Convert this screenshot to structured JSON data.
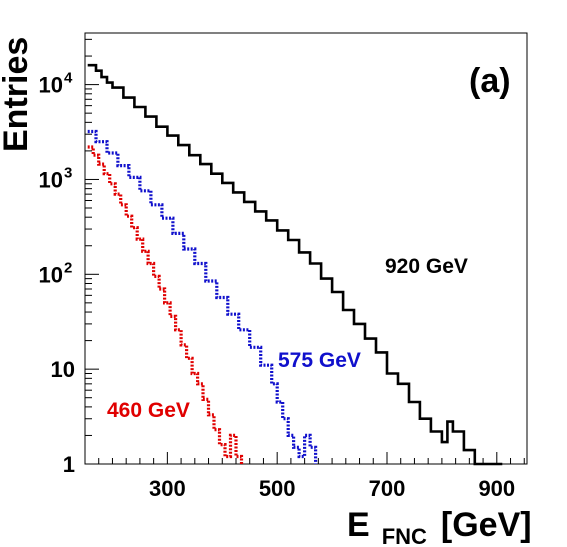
{
  "chart_data": {
    "type": "line",
    "panel_label": "(a)",
    "xlabel": {
      "main": "E",
      "sub": "FNC",
      "unit": "[GeV]"
    },
    "ylabel": "Entries",
    "xlim": [
      150,
      955
    ],
    "ylim": [
      1,
      35000
    ],
    "yscale": "log",
    "x_ticks": [
      300,
      500,
      700,
      900
    ],
    "y_ticks": [
      {
        "value": 1,
        "label": "1"
      },
      {
        "value": 10,
        "label": "10"
      },
      {
        "value": 100,
        "label": "10",
        "exp": "2"
      },
      {
        "value": 1000,
        "label": "10",
        "exp": "3"
      },
      {
        "value": 10000,
        "label": "10",
        "exp": "4"
      }
    ],
    "series": [
      {
        "name": "920 GeV",
        "color": "#000000",
        "style": "solid",
        "x": [
          155,
          170,
          180,
          190,
          200,
          220,
          240,
          260,
          280,
          300,
          320,
          340,
          360,
          380,
          400,
          420,
          440,
          460,
          480,
          500,
          520,
          540,
          560,
          580,
          600,
          620,
          640,
          660,
          680,
          700,
          720,
          740,
          760,
          780,
          800,
          810,
          820,
          840,
          860,
          870,
          880,
          890,
          900
        ],
        "y": [
          16000,
          14000,
          12000,
          10500,
          9300,
          7300,
          5800,
          4600,
          3600,
          2900,
          2300,
          1800,
          1450,
          1150,
          920,
          730,
          580,
          460,
          370,
          290,
          230,
          170,
          130,
          90,
          65,
          42,
          30,
          21,
          15,
          9,
          7,
          4.5,
          3,
          2.2,
          1.7,
          2.8,
          2.2,
          1.4,
          1,
          1,
          1,
          1,
          1
        ]
      },
      {
        "name": "575 GeV",
        "color": "#1010cc",
        "style": "dotted",
        "x": [
          155,
          170,
          190,
          210,
          230,
          250,
          270,
          290,
          310,
          330,
          350,
          370,
          390,
          410,
          430,
          450,
          470,
          490,
          500,
          510,
          520,
          530,
          540,
          550,
          560
        ],
        "y": [
          3200,
          2500,
          1900,
          1400,
          1050,
          760,
          540,
          390,
          270,
          185,
          130,
          85,
          57,
          38,
          26,
          17,
          11,
          7,
          4.5,
          3,
          2,
          1.5,
          1.2,
          2,
          1.5
        ]
      },
      {
        "name": "460 GeV",
        "color": "#e00000",
        "style": "dotted",
        "x": [
          155,
          165,
          175,
          185,
          195,
          205,
          215,
          225,
          235,
          245,
          255,
          265,
          275,
          285,
          295,
          305,
          315,
          325,
          335,
          345,
          355,
          365,
          375,
          385,
          395,
          405,
          415,
          425
        ],
        "y": [
          2200,
          1800,
          1450,
          1150,
          900,
          700,
          540,
          410,
          310,
          235,
          175,
          130,
          95,
          70,
          50,
          36,
          26,
          18,
          13,
          9,
          7,
          4.8,
          3.3,
          2.3,
          1.6,
          1.2,
          2,
          1.2
        ]
      }
    ],
    "series_labels": [
      {
        "series": "920 GeV",
        "text": "920 GeV"
      },
      {
        "series": "575 GeV",
        "text": "575 GeV"
      },
      {
        "series": "460 GeV",
        "text": "460 GeV"
      }
    ]
  }
}
